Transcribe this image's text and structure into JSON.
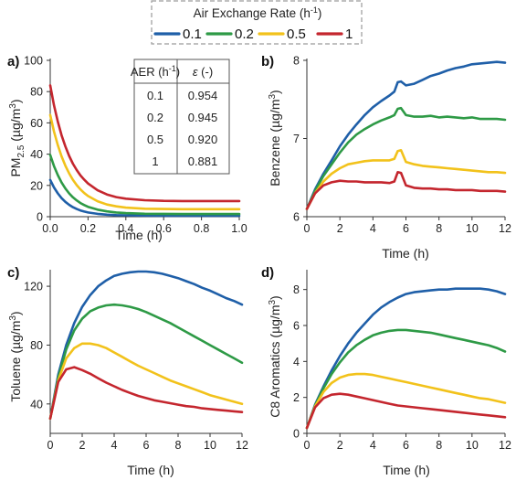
{
  "legend": {
    "title": "Air Exchange Rate (h",
    "title_sup": "-1",
    "title_end": ")",
    "entries": [
      {
        "label": "0.1",
        "color": "#1f5fa8"
      },
      {
        "label": "0.2",
        "color": "#2e9a46"
      },
      {
        "label": "0.5",
        "color": "#f2c21b"
      },
      {
        "label": "1",
        "color": "#c4262e"
      }
    ]
  },
  "table": {
    "header_col1": "AER (h",
    "header_col1_sup": "-1",
    "header_col1_end": ")",
    "header_col2": "ε",
    "header_col2_end": " (-)",
    "rows": [
      {
        "aer": "0.1",
        "eps": "0.954"
      },
      {
        "aer": "0.2",
        "eps": "0.945"
      },
      {
        "aer": "0.5",
        "eps": "0.920"
      },
      {
        "aer": "1",
        "eps": "0.881"
      }
    ]
  },
  "chart_data": [
    {
      "panel": "a)",
      "type": "line",
      "ylabel": "PM",
      "ylabel_sub": "2.5",
      "ylabel_unit": " (µg/m",
      "ylabel_sup": "3",
      "ylabel_end": ")",
      "xlabel": "Time (h)",
      "xlim": [
        0,
        1
      ],
      "ylim": [
        0,
        100
      ],
      "xticks": [
        "0.0",
        "0.2",
        "0.4",
        "0.6",
        "0.8",
        "1.0"
      ],
      "yticks": [
        "0",
        "20",
        "40",
        "60",
        "80",
        "100"
      ],
      "x": [
        0,
        0.02,
        0.04,
        0.06,
        0.08,
        0.1,
        0.12,
        0.14,
        0.16,
        0.18,
        0.2,
        0.25,
        0.3,
        0.35,
        0.4,
        0.5,
        0.6,
        0.7,
        0.8,
        0.9,
        1.0
      ],
      "series": [
        {
          "name": "0.1",
          "color": "#1f5fa8",
          "values": [
            23.5,
            18.7,
            14.9,
            11.9,
            9.5,
            7.6,
            6.1,
            4.9,
            4.0,
            3.3,
            2.7,
            1.8,
            1.3,
            1.0,
            0.9,
            0.7,
            0.6,
            0.6,
            0.6,
            0.6,
            0.6
          ]
        },
        {
          "name": "0.2",
          "color": "#2e9a46",
          "values": [
            39.5,
            32.4,
            26.6,
            21.9,
            18.0,
            14.9,
            12.4,
            10.4,
            8.7,
            7.4,
            6.3,
            4.5,
            3.4,
            2.7,
            2.3,
            1.9,
            1.8,
            1.7,
            1.7,
            1.7,
            1.7
          ]
        },
        {
          "name": "0.5",
          "color": "#f2c21b",
          "values": [
            65.0,
            54.5,
            45.8,
            38.6,
            32.6,
            27.7,
            23.6,
            20.2,
            17.4,
            15.1,
            13.2,
            9.9,
            7.8,
            6.6,
            5.8,
            5.1,
            4.9,
            4.8,
            4.8,
            4.8,
            4.8
          ]
        },
        {
          "name": "1",
          "color": "#c4262e",
          "values": [
            84.0,
            71.3,
            60.8,
            52.1,
            44.9,
            38.9,
            33.9,
            29.8,
            26.4,
            23.6,
            21.2,
            16.9,
            14.2,
            12.5,
            11.5,
            10.5,
            10.1,
            10.0,
            10.0,
            10.0,
            10.0
          ]
        }
      ]
    },
    {
      "panel": "b)",
      "type": "line",
      "ylabel": "Benzene (µg/m",
      "ylabel_sup": "3",
      "ylabel_end": ")",
      "xlabel": "Time (h)",
      "xlim": [
        0,
        12
      ],
      "ylim": [
        6,
        8
      ],
      "xticks": [
        "0",
        "2",
        "4",
        "6",
        "8",
        "10",
        "12"
      ],
      "yticks": [
        "6",
        "7",
        "8"
      ],
      "x": [
        0,
        0.5,
        1,
        1.5,
        2,
        2.5,
        3,
        3.5,
        4,
        4.5,
        5,
        5.3,
        5.5,
        5.7,
        6,
        6.5,
        7,
        7.5,
        8,
        8.5,
        9,
        9.5,
        10,
        10.5,
        11,
        11.5,
        12
      ],
      "series": [
        {
          "name": "0.1",
          "color": "#1f5fa8",
          "values": [
            6.1,
            6.35,
            6.55,
            6.72,
            6.9,
            7.05,
            7.18,
            7.3,
            7.4,
            7.48,
            7.55,
            7.6,
            7.72,
            7.73,
            7.68,
            7.7,
            7.75,
            7.8,
            7.83,
            7.87,
            7.9,
            7.92,
            7.95,
            7.96,
            7.97,
            7.98,
            7.97
          ]
        },
        {
          "name": "0.2",
          "color": "#2e9a46",
          "values": [
            6.1,
            6.33,
            6.52,
            6.67,
            6.82,
            6.95,
            7.05,
            7.12,
            7.18,
            7.23,
            7.27,
            7.3,
            7.38,
            7.39,
            7.3,
            7.28,
            7.28,
            7.29,
            7.27,
            7.28,
            7.27,
            7.26,
            7.27,
            7.25,
            7.25,
            7.25,
            7.24
          ]
        },
        {
          "name": "0.5",
          "color": "#f2c21b",
          "values": [
            6.1,
            6.3,
            6.45,
            6.55,
            6.62,
            6.67,
            6.69,
            6.71,
            6.72,
            6.72,
            6.72,
            6.74,
            6.84,
            6.85,
            6.7,
            6.67,
            6.65,
            6.64,
            6.63,
            6.62,
            6.61,
            6.6,
            6.59,
            6.58,
            6.57,
            6.57,
            6.56
          ]
        },
        {
          "name": "1",
          "color": "#c4262e",
          "values": [
            6.1,
            6.3,
            6.4,
            6.44,
            6.46,
            6.45,
            6.45,
            6.44,
            6.44,
            6.44,
            6.43,
            6.45,
            6.57,
            6.56,
            6.4,
            6.37,
            6.36,
            6.36,
            6.35,
            6.35,
            6.34,
            6.34,
            6.34,
            6.33,
            6.33,
            6.33,
            6.32
          ]
        }
      ]
    },
    {
      "panel": "c)",
      "type": "line",
      "ylabel": "Toluene (µg/m",
      "ylabel_sup": "3",
      "ylabel_end": ")",
      "xlabel": "Time (h)",
      "xlim": [
        0,
        12
      ],
      "ylim": [
        20,
        130
      ],
      "xticks": [
        "0",
        "2",
        "4",
        "6",
        "8",
        "10",
        "12"
      ],
      "yticks": [
        "40",
        "80",
        "120"
      ],
      "x": [
        0,
        0.5,
        1,
        1.5,
        2,
        2.5,
        3,
        3.5,
        4,
        4.5,
        5,
        5.5,
        6,
        6.5,
        7,
        7.5,
        8,
        8.5,
        9,
        9.5,
        10,
        10.5,
        11,
        11.5,
        12
      ],
      "series": [
        {
          "name": "0.1",
          "color": "#1f5fa8",
          "values": [
            30,
            60,
            80,
            95,
            106,
            114,
            120,
            124,
            127,
            128.5,
            129.5,
            130,
            130,
            129.5,
            128.5,
            127,
            125.5,
            123.5,
            121.5,
            119,
            117,
            114.5,
            112,
            110,
            107.5
          ]
        },
        {
          "name": "0.2",
          "color": "#2e9a46",
          "values": [
            30,
            58,
            77,
            90,
            98,
            103,
            105.5,
            107,
            107.5,
            107,
            106,
            104.5,
            102.5,
            100,
            97.5,
            95,
            92,
            89,
            86,
            83,
            80,
            77,
            74,
            71,
            68
          ]
        },
        {
          "name": "0.5",
          "color": "#f2c21b",
          "values": [
            30,
            56,
            71,
            78,
            81,
            81,
            80,
            78,
            75,
            72,
            69,
            66,
            63.5,
            61,
            58.5,
            56,
            54,
            52,
            50,
            48,
            46,
            44.5,
            43,
            41.5,
            40
          ]
        },
        {
          "name": "1",
          "color": "#c4262e",
          "values": [
            30,
            55,
            63.5,
            65,
            63,
            60.5,
            57.5,
            54.5,
            52,
            49.5,
            47.5,
            45.5,
            44,
            42.5,
            41.5,
            40.5,
            39.5,
            38.5,
            38,
            37,
            36.5,
            36,
            35.5,
            35,
            34.5
          ]
        }
      ]
    },
    {
      "panel": "d)",
      "type": "line",
      "ylabel": "C8 Aromatics (µg/m",
      "ylabel_sup": "3",
      "ylabel_end": ")",
      "xlabel": "Time (h)",
      "xlim": [
        0,
        12
      ],
      "ylim": [
        0,
        9
      ],
      "xticks": [
        "0",
        "2",
        "4",
        "6",
        "8",
        "10",
        "12"
      ],
      "yticks": [
        "0",
        "2",
        "4",
        "6",
        "8"
      ],
      "x": [
        0,
        0.5,
        1,
        1.5,
        2,
        2.5,
        3,
        3.5,
        4,
        4.5,
        5,
        5.5,
        6,
        6.5,
        7,
        7.5,
        8,
        8.5,
        9,
        9.5,
        10,
        10.5,
        11,
        11.5,
        12
      ],
      "series": [
        {
          "name": "0.1",
          "color": "#1f5fa8",
          "values": [
            0.3,
            1.6,
            2.6,
            3.5,
            4.3,
            5.0,
            5.6,
            6.1,
            6.6,
            7.0,
            7.3,
            7.55,
            7.75,
            7.85,
            7.9,
            7.95,
            8.0,
            8.0,
            8.05,
            8.05,
            8.05,
            8.05,
            8.0,
            7.9,
            7.75
          ]
        },
        {
          "name": "0.2",
          "color": "#2e9a46",
          "values": [
            0.3,
            1.55,
            2.5,
            3.3,
            3.95,
            4.5,
            4.9,
            5.2,
            5.45,
            5.6,
            5.7,
            5.75,
            5.75,
            5.7,
            5.65,
            5.6,
            5.5,
            5.4,
            5.3,
            5.2,
            5.1,
            5.0,
            4.9,
            4.75,
            4.55
          ]
        },
        {
          "name": "0.5",
          "color": "#f2c21b",
          "values": [
            0.3,
            1.5,
            2.3,
            2.8,
            3.1,
            3.25,
            3.3,
            3.3,
            3.25,
            3.15,
            3.05,
            2.95,
            2.85,
            2.75,
            2.65,
            2.55,
            2.45,
            2.35,
            2.25,
            2.15,
            2.05,
            1.95,
            1.9,
            1.8,
            1.7
          ]
        },
        {
          "name": "1",
          "color": "#c4262e",
          "values": [
            0.3,
            1.45,
            1.95,
            2.15,
            2.2,
            2.15,
            2.05,
            1.95,
            1.85,
            1.75,
            1.65,
            1.55,
            1.5,
            1.45,
            1.4,
            1.35,
            1.3,
            1.25,
            1.2,
            1.15,
            1.1,
            1.05,
            1.0,
            0.95,
            0.9
          ]
        }
      ]
    }
  ]
}
